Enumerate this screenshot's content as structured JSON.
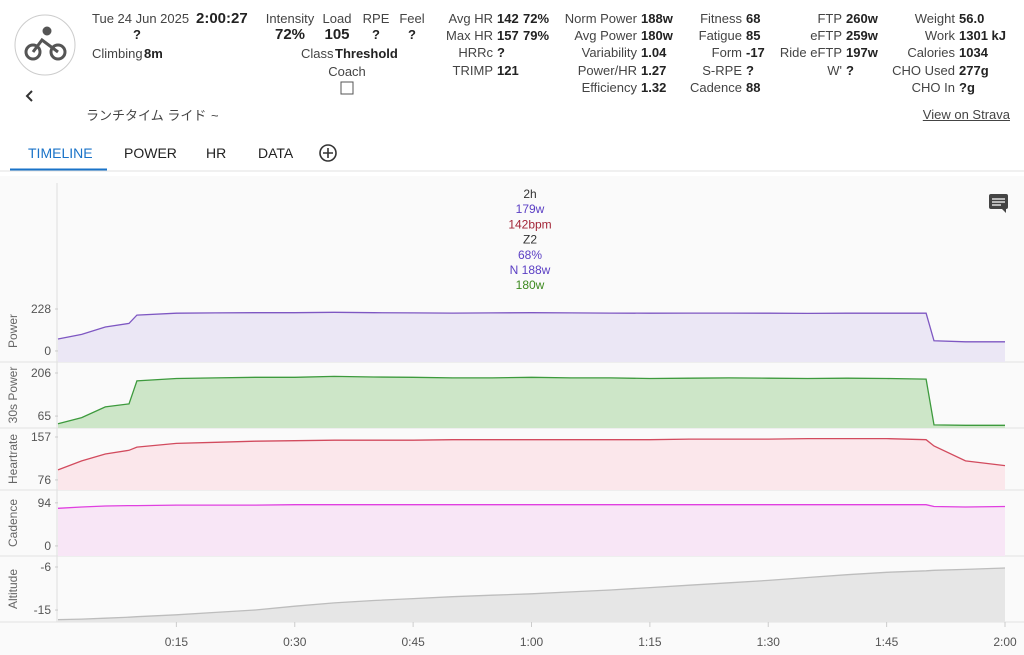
{
  "header": {
    "date": "Tue 24 Jun 2025",
    "duration": "2:00:27",
    "date_extra": "?",
    "climbing_label": "Climbing",
    "climbing": "8m",
    "name": "ランチタイム ライド",
    "name_extra": "~",
    "strava": "View on Strava"
  },
  "metrics": {
    "intensity_label": "Intensity",
    "intensity": "72%",
    "load_label": "Load",
    "load": "105",
    "rpe_label": "RPE",
    "rpe": "?",
    "feel_label": "Feel",
    "feel": "?",
    "class_label": "Class",
    "class": "Threshold",
    "coach_label": "Coach"
  },
  "stat_columns": [
    [
      {
        "label": "Avg HR",
        "value": "142",
        "extra": "72%"
      },
      {
        "label": "Max HR",
        "value": "157",
        "extra": "79%"
      },
      {
        "label": "HRRc",
        "value": "?"
      },
      {
        "label": "TRIMP",
        "value": "121"
      }
    ],
    [
      {
        "label": "Norm Power",
        "value": "188w"
      },
      {
        "label": "Avg Power",
        "value": "180w"
      },
      {
        "label": "Variability",
        "value": "1.04"
      },
      {
        "label": "Power/HR",
        "value": "1.27"
      },
      {
        "label": "Efficiency",
        "value": "1.32"
      }
    ],
    [
      {
        "label": "Fitness",
        "value": "68"
      },
      {
        "label": "Fatigue",
        "value": "85"
      },
      {
        "label": "Form",
        "value": "-17"
      },
      {
        "label": "S-RPE",
        "value": "?"
      },
      {
        "label": "Cadence",
        "value": "88"
      }
    ],
    [
      {
        "label": "FTP",
        "value": "260w"
      },
      {
        "label": "eFTP",
        "value": "259w"
      },
      {
        "label": "Ride eFTP",
        "value": "197w"
      },
      {
        "label": "W'",
        "value": "?"
      }
    ],
    [
      {
        "label": "Weight",
        "value": "56.0"
      },
      {
        "label": "Work",
        "value": "1301 kJ"
      },
      {
        "label": "Calories",
        "value": "1034"
      },
      {
        "label": "CHO Used",
        "value": "277g"
      },
      {
        "label": "CHO In",
        "value": "?g"
      }
    ]
  ],
  "tabs": [
    "TIMELINE",
    "POWER",
    "HR",
    "DATA"
  ],
  "summary": [
    "2h",
    "179w",
    "142bpm",
    "Z2",
    "68%",
    "N 188w",
    "180w"
  ],
  "timeline": {
    "type": "line",
    "x": [
      0,
      3,
      6,
      9,
      10,
      15,
      20,
      25,
      30,
      35,
      40,
      45,
      50,
      55,
      60,
      65,
      70,
      75,
      80,
      85,
      90,
      95,
      100,
      105,
      110,
      111,
      115,
      120
    ],
    "xlim": [
      0,
      120
    ],
    "xticks": [
      {
        "value": 15,
        "label": "0:15"
      },
      {
        "value": 30,
        "label": "0:30"
      },
      {
        "value": 45,
        "label": "0:45"
      },
      {
        "value": 60,
        "label": "1:00"
      },
      {
        "value": 75,
        "label": "1:15"
      },
      {
        "value": 90,
        "label": "1:30"
      },
      {
        "value": 105,
        "label": "1:45"
      },
      {
        "value": 120,
        "label": "2:00"
      }
    ],
    "panels": [
      {
        "name": "Power",
        "color": "#7e57c2",
        "ylim": [
          -60,
          277
        ],
        "yticks": [
          0,
          228
        ],
        "values": [
          65,
          90,
          130,
          150,
          195,
          205,
          207,
          208,
          208,
          210,
          208,
          207,
          206,
          207,
          208,
          207,
          206,
          205,
          206,
          206,
          205,
          204,
          205,
          205,
          205,
          55,
          50,
          50
        ]
      },
      {
        "name": "30s Power",
        "color": "#3d9a3d",
        "ylim": [
          26,
          242
        ],
        "yticks": [
          65,
          206
        ],
        "values": [
          40,
          60,
          95,
          105,
          180,
          188,
          190,
          192,
          192,
          195,
          193,
          192,
          190,
          190,
          192,
          190,
          190,
          188,
          189,
          190,
          189,
          188,
          189,
          188,
          186,
          36,
          35,
          35
        ]
      },
      {
        "name": "Heartrate",
        "color": "#d24b5e",
        "ylim": [
          57,
          174
        ],
        "yticks": [
          76,
          157
        ],
        "values": [
          95,
          112,
          125,
          132,
          138,
          145,
          147,
          149,
          150,
          151,
          151,
          151,
          152,
          152,
          152,
          152,
          152,
          152,
          153,
          153,
          153,
          154,
          154,
          154,
          152,
          140,
          112,
          103
        ]
      },
      {
        "name": "Cadence",
        "color": "#e040e0",
        "ylim": [
          -22,
          122
        ],
        "yticks": [
          0,
          94
        ],
        "values": [
          82,
          85,
          87,
          88,
          88,
          89,
          89,
          89,
          90,
          90,
          90,
          90,
          90,
          90,
          90,
          90,
          90,
          90,
          90,
          90,
          90,
          90,
          90,
          90,
          90,
          86,
          85,
          86
        ]
      },
      {
        "name": "Altitude",
        "color": "#bdbdbd",
        "ylim": [
          -17.5,
          -3.7
        ],
        "yticks": [
          -15,
          -6
        ],
        "values": [
          -17,
          -16.9,
          -16.7,
          -16.5,
          -16.4,
          -16,
          -15.5,
          -15,
          -14.2,
          -13.5,
          -13,
          -12.6,
          -12.2,
          -11.9,
          -11.6,
          -11.2,
          -10.8,
          -10.3,
          -9.8,
          -9.3,
          -8.8,
          -8.2,
          -7.6,
          -7.1,
          -6.8,
          -6.7,
          -6.5,
          -6.2
        ]
      }
    ]
  }
}
